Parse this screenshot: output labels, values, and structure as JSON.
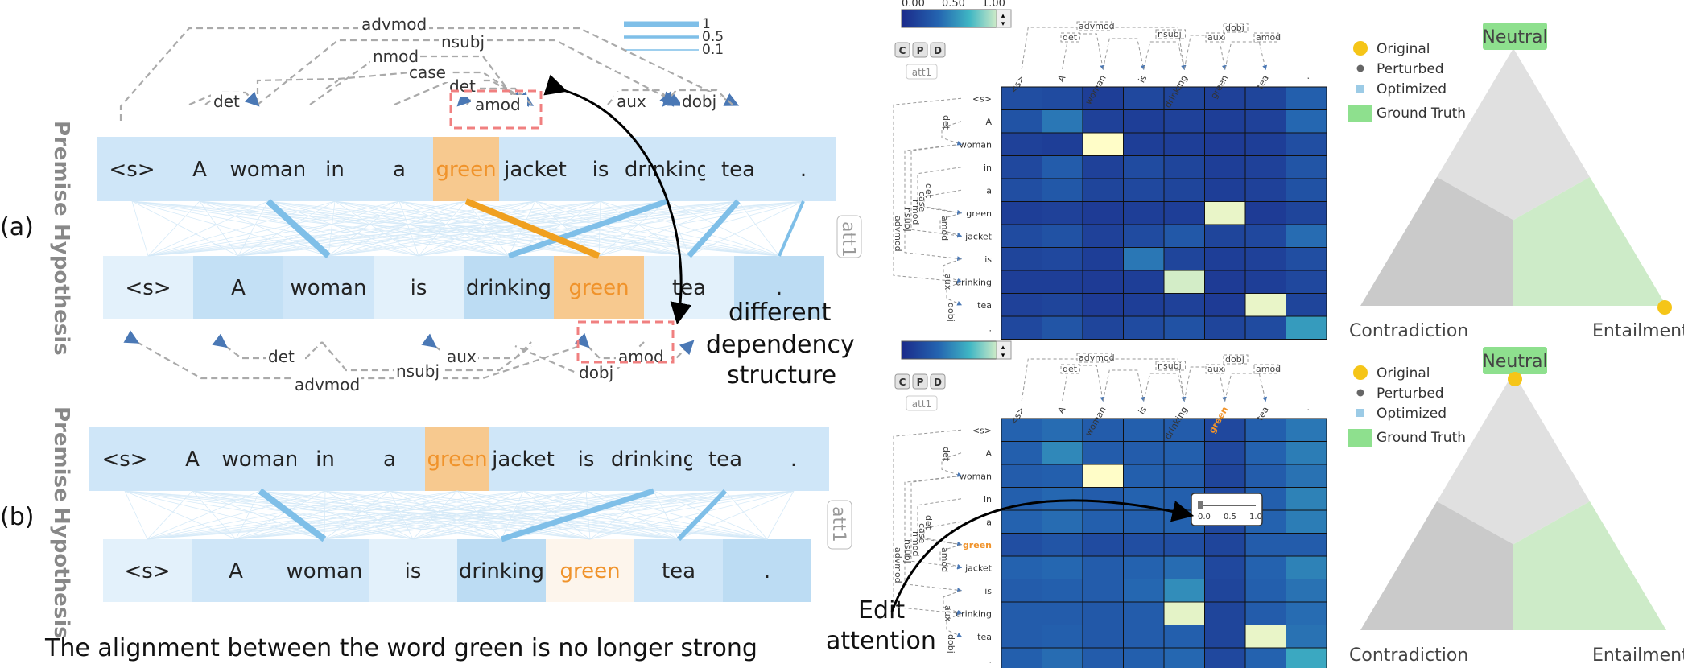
{
  "captions": {
    "a": "(a)",
    "b": "(b)",
    "premise": "Premise",
    "hypothesis": "Hypothesis",
    "att_a": "att1",
    "att_b": "att1",
    "different_1": "different",
    "different_2": "dependency",
    "different_3": "structure",
    "edit_1": "Edit",
    "edit_2": "attention",
    "bottom_note": "The alignment between the word green is no longer strong"
  },
  "line_legend": {
    "labels": [
      "1",
      "0.5",
      "0.1"
    ]
  },
  "premise_tokens": [
    "<s>",
    "A",
    "woman",
    "in",
    "a",
    "green",
    "jacket",
    "is",
    "drinking",
    "tea",
    "."
  ],
  "hypothesis_tokens": [
    "<s>",
    "A",
    "woman",
    "is",
    "drinking",
    "green",
    "tea",
    "."
  ],
  "premise_arcs_top": [
    "advmod",
    "nsubj",
    "nmod",
    "case",
    "det",
    "amod",
    "det",
    "aux",
    "dobj"
  ],
  "hypothesis_arcs_bottom": [
    "det",
    "aux",
    "amod",
    "advmod",
    "nsubj",
    "dobj"
  ],
  "colors": {
    "highlight": "#f7c98f",
    "highlight_text": "#f0932b",
    "orange_line": "#f0a020",
    "blue_line": "#7fbfe8",
    "token_bg": "#cfe6f8",
    "neutral_box": "#8ee08e",
    "original_dot": "#f5c518",
    "perturbed_dot": "#666666",
    "optimized_dot": "#9ccbe6"
  },
  "heatmap": {
    "scale_labels_top": [
      "0.00",
      "0.50",
      "1.00"
    ],
    "buttons": [
      "C",
      "P",
      "D"
    ],
    "att_label": "att1",
    "col_tokens": [
      "<s>",
      "A",
      "woman",
      "is",
      "drinking",
      "green",
      "tea",
      "."
    ],
    "row_tokens": [
      "<s>",
      "A",
      "woman",
      "in",
      "a",
      "green",
      "jacket",
      "is",
      "drinking",
      "tea",
      "."
    ],
    "col_arcs": [
      "advmod",
      "det",
      "nsubj",
      "aux",
      "dobj",
      "amod"
    ],
    "row_arcs": [
      "advmod",
      "nsubj",
      "nmod",
      "case",
      "det",
      "det",
      "amod",
      "aux",
      "dobj"
    ],
    "slider_labels": [
      "0.0",
      "0.5",
      "1.0"
    ],
    "top_values": [
      [
        0.22,
        0.2,
        0.12,
        0.18,
        0.16,
        0.14,
        0.16,
        0.32
      ],
      [
        0.25,
        0.42,
        0.14,
        0.12,
        0.14,
        0.12,
        0.14,
        0.36
      ],
      [
        0.14,
        0.12,
        1.0,
        0.12,
        0.12,
        0.1,
        0.12,
        0.22
      ],
      [
        0.18,
        0.3,
        0.14,
        0.2,
        0.16,
        0.12,
        0.14,
        0.26
      ],
      [
        0.22,
        0.28,
        0.16,
        0.18,
        0.16,
        0.12,
        0.14,
        0.24
      ],
      [
        0.12,
        0.14,
        0.1,
        0.12,
        0.12,
        0.96,
        0.1,
        0.16
      ],
      [
        0.2,
        0.24,
        0.14,
        0.2,
        0.28,
        0.16,
        0.18,
        0.38
      ],
      [
        0.16,
        0.18,
        0.12,
        0.42,
        0.16,
        0.12,
        0.14,
        0.22
      ],
      [
        0.12,
        0.12,
        0.1,
        0.12,
        0.92,
        0.1,
        0.12,
        0.18
      ],
      [
        0.14,
        0.16,
        0.1,
        0.12,
        0.14,
        0.1,
        0.96,
        0.16
      ],
      [
        0.18,
        0.26,
        0.16,
        0.2,
        0.24,
        0.16,
        0.2,
        0.55
      ]
    ],
    "bottom_values": [
      [
        0.34,
        0.38,
        0.3,
        0.32,
        0.3,
        0.18,
        0.32,
        0.42
      ],
      [
        0.32,
        0.48,
        0.3,
        0.3,
        0.32,
        0.18,
        0.34,
        0.44
      ],
      [
        0.3,
        0.32,
        1.0,
        0.32,
        0.3,
        0.16,
        0.3,
        0.4
      ],
      [
        0.32,
        0.36,
        0.3,
        0.34,
        0.32,
        0.18,
        0.32,
        0.46
      ],
      [
        0.34,
        0.38,
        0.32,
        0.32,
        0.34,
        0.18,
        0.34,
        0.44
      ],
      [
        0.22,
        0.26,
        0.2,
        0.22,
        0.22,
        0.16,
        0.3,
        0.3
      ],
      [
        0.34,
        0.36,
        0.3,
        0.34,
        0.38,
        0.18,
        0.34,
        0.46
      ],
      [
        0.3,
        0.32,
        0.3,
        0.36,
        0.5,
        0.16,
        0.32,
        0.4
      ],
      [
        0.3,
        0.3,
        0.28,
        0.3,
        0.95,
        0.16,
        0.3,
        0.38
      ],
      [
        0.3,
        0.32,
        0.28,
        0.3,
        0.32,
        0.16,
        0.96,
        0.4
      ],
      [
        0.32,
        0.38,
        0.3,
        0.32,
        0.36,
        0.18,
        0.34,
        0.6
      ]
    ]
  },
  "triangle_a": {
    "top": "Neutral",
    "left": "Contradiction",
    "right": "Entailment",
    "legend": [
      "Original",
      "Perturbed",
      "Optimized",
      "Ground Truth"
    ],
    "original_point": "Entailment"
  },
  "triangle_b": {
    "top": "Neutral",
    "left": "Contradiction",
    "right": "Entailment",
    "legend": [
      "Original",
      "Perturbed",
      "Optimized",
      "Ground Truth"
    ],
    "original_point": "Neutral"
  }
}
